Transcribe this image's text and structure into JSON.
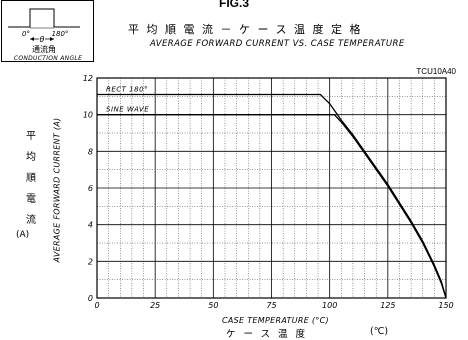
{
  "figure_label": "FIG.3",
  "title_ja": "平均順電流－ケース温度定格",
  "title_en": "AVERAGE FORWARD CURRENT VS. CASE TEMPERATURE",
  "part_number": "TCU10A40",
  "inset": {
    "label_0": "0°",
    "label_180": "180°",
    "label_theta": "θ",
    "caption_ja": "通流角",
    "caption_en": "CONDUCTION ANGLE"
  },
  "y_label_ja": [
    "平",
    "均",
    "順",
    "電",
    "流"
  ],
  "y_label_unit": "(A)",
  "chart_data": {
    "type": "line",
    "xlabel": "CASE TEMPERATURE (°C)",
    "xlabel_ja": "ケース温度",
    "xlabel_unit": "(℃)",
    "ylabel": "AVERAGE FORWARD CURRENT (A)",
    "xlim": [
      0,
      150
    ],
    "ylim": [
      0,
      12
    ],
    "x_ticks": [
      0,
      25,
      50,
      75,
      100,
      125,
      150
    ],
    "y_ticks": [
      0,
      2,
      4,
      6,
      8,
      10,
      12
    ],
    "grid": true,
    "series": [
      {
        "name": "RECT 180°",
        "x": [
          0,
          96,
          100,
          105,
          110,
          115,
          120,
          125,
          130,
          135,
          140,
          145,
          148,
          150
        ],
        "y": [
          11.1,
          11.1,
          10.6,
          9.7,
          8.9,
          8.0,
          7.1,
          6.2,
          5.2,
          4.2,
          3.1,
          1.8,
          0.9,
          0
        ]
      },
      {
        "name": "SINE WAVE",
        "x": [
          0,
          102,
          105,
          110,
          115,
          120,
          125,
          130,
          135,
          140,
          145,
          148,
          150
        ],
        "y": [
          10.0,
          10.0,
          9.6,
          8.8,
          7.9,
          7.0,
          6.1,
          5.1,
          4.1,
          3.0,
          1.7,
          0.8,
          0
        ]
      }
    ]
  }
}
